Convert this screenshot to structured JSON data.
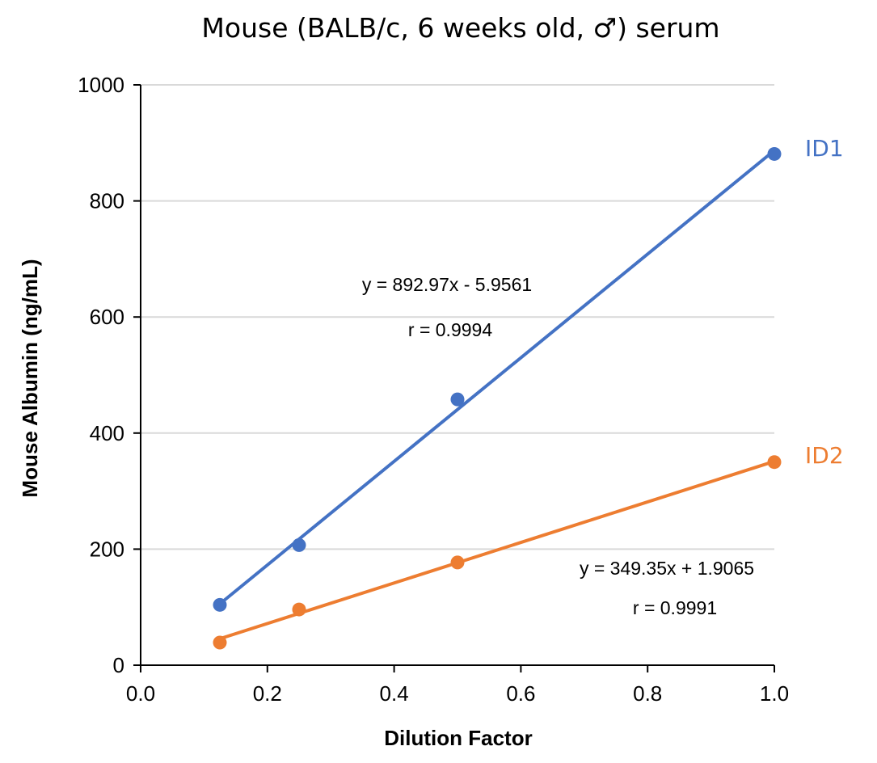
{
  "chart_data": {
    "type": "scatter",
    "title": "Mouse (BALB/c, 6 weeks old, ♂) serum",
    "xlabel": "Dilution Factor",
    "ylabel": "Mouse Albumin (ng/mL)",
    "xlim": [
      0,
      1
    ],
    "ylim": [
      0,
      1000
    ],
    "x_ticks": [
      "0.0",
      "0.2",
      "0.4",
      "0.6",
      "0.8",
      "1.0"
    ],
    "y_ticks": [
      "0",
      "200",
      "400",
      "600",
      "800",
      "1000"
    ],
    "grid": "horizontal",
    "series": [
      {
        "name": "ID1",
        "color": "#4472C4",
        "x": [
          0.125,
          0.25,
          0.5,
          1.0
        ],
        "y": [
          104,
          207,
          458,
          881
        ],
        "trendline": {
          "slope": 892.97,
          "intercept": -5.9561
        },
        "equation": "y = 892.97x - 5.9561",
        "r": "r = 0.9994"
      },
      {
        "name": "ID2",
        "color": "#ED7D31",
        "x": [
          0.125,
          0.25,
          0.5,
          1.0
        ],
        "y": [
          39,
          96,
          177,
          350
        ],
        "trendline": {
          "slope": 349.35,
          "intercept": 1.9065
        },
        "equation": "y = 349.35x + 1.9065",
        "r": "r = 0.9991"
      }
    ]
  }
}
